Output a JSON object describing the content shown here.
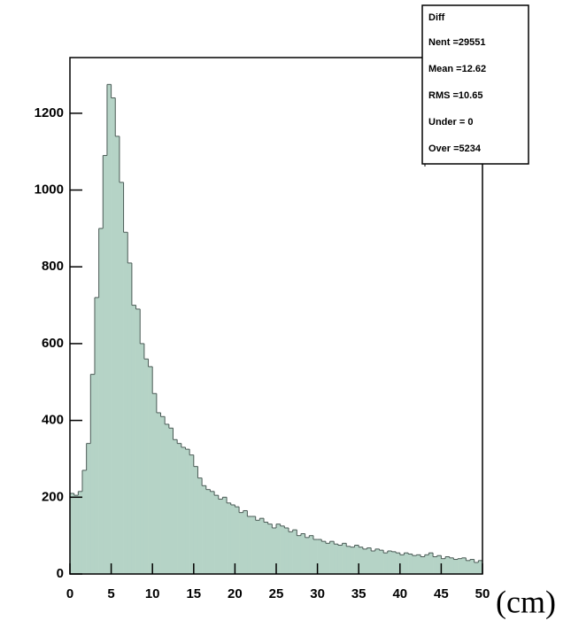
{
  "chart_data": {
    "type": "histogram",
    "stats_title": "Diff",
    "stats": [
      "Nent  =29551",
      "Mean  =12.62",
      "RMS  =10.65",
      "Under =    0",
      "Over    =5234"
    ],
    "xlabel": "(cm)",
    "bins": [
      0,
      0.5,
      1,
      1.5,
      2,
      2.5,
      3,
      3.5,
      4,
      4.5,
      5,
      5.5,
      6,
      6.5,
      7,
      7.5,
      8,
      8.5,
      9,
      9.5,
      10,
      10.5,
      11,
      11.5,
      12,
      12.5,
      13,
      13.5,
      14,
      14.5,
      15,
      15.5,
      16,
      16.5,
      17,
      17.5,
      18,
      18.5,
      19,
      19.5,
      20,
      20.5,
      21,
      21.5,
      22,
      22.5,
      23,
      23.5,
      24,
      24.5,
      25,
      25.5,
      26,
      26.5,
      27,
      27.5,
      28,
      28.5,
      29,
      29.5,
      30,
      30.5,
      31,
      31.5,
      32,
      32.5,
      33,
      33.5,
      34,
      34.5,
      35,
      35.5,
      36,
      36.5,
      37,
      37.5,
      38,
      38.5,
      39,
      39.5,
      40,
      40.5,
      41,
      41.5,
      42,
      42.5,
      43,
      43.5,
      44,
      44.5,
      45,
      45.5,
      46,
      46.5,
      47,
      47.5,
      48,
      48.5,
      49,
      49.5,
      50
    ],
    "values": [
      210,
      205,
      215,
      270,
      340,
      520,
      720,
      900,
      1090,
      1275,
      1240,
      1140,
      1020,
      890,
      810,
      700,
      690,
      600,
      560,
      540,
      470,
      420,
      410,
      390,
      380,
      350,
      340,
      330,
      325,
      310,
      280,
      250,
      230,
      220,
      215,
      205,
      195,
      200,
      185,
      180,
      175,
      160,
      165,
      150,
      150,
      140,
      145,
      135,
      130,
      120,
      130,
      125,
      120,
      110,
      115,
      100,
      105,
      95,
      100,
      90,
      90,
      85,
      80,
      85,
      78,
      75,
      80,
      72,
      70,
      75,
      70,
      65,
      68,
      60,
      65,
      62,
      55,
      60,
      58,
      55,
      50,
      55,
      52,
      48,
      50,
      45,
      50,
      55,
      45,
      48,
      40,
      45,
      42,
      38,
      40,
      42,
      35,
      38,
      30,
      35
    ],
    "color": "#b5d3c6",
    "xlim": [
      0,
      50
    ],
    "ylim": [
      0,
      1345
    ],
    "xticks": [
      0,
      5,
      10,
      15,
      20,
      25,
      30,
      35,
      40,
      45,
      50
    ],
    "yticks": [
      0,
      200,
      400,
      600,
      800,
      1000,
      1200
    ]
  }
}
